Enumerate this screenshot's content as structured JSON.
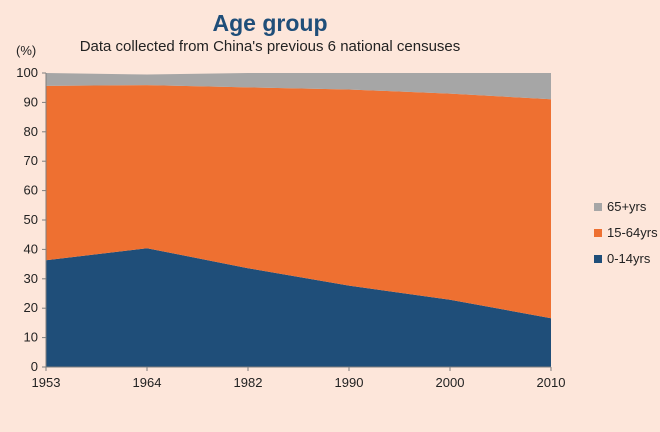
{
  "chart_data": {
    "type": "area",
    "stacked": true,
    "title": "Age group",
    "subtitle": "Data collected from China's previous 6 national censuses",
    "ylabel": "(%)",
    "xlabel": "",
    "x": [
      "1953",
      "1964",
      "1982",
      "1990",
      "2000",
      "2010"
    ],
    "ylim": [
      0,
      100
    ],
    "yticks": [
      "0",
      "10",
      "20",
      "30",
      "40",
      "50",
      "60",
      "70",
      "80",
      "90",
      "100"
    ],
    "grid": false,
    "legend_position": "right",
    "series": [
      {
        "name": "0-14yrs",
        "color": "#1f4e79",
        "values": [
          36.3,
          40.4,
          33.6,
          27.7,
          22.9,
          16.6
        ]
      },
      {
        "name": "15-64yrs",
        "color": "#ee7031",
        "values": [
          59.3,
          55.5,
          61.5,
          66.7,
          70.1,
          74.5
        ]
      },
      {
        "name": "65+yrs",
        "color": "#a6a6a6",
        "values": [
          4.4,
          3.6,
          4.9,
          5.6,
          7.0,
          8.9
        ]
      }
    ]
  }
}
